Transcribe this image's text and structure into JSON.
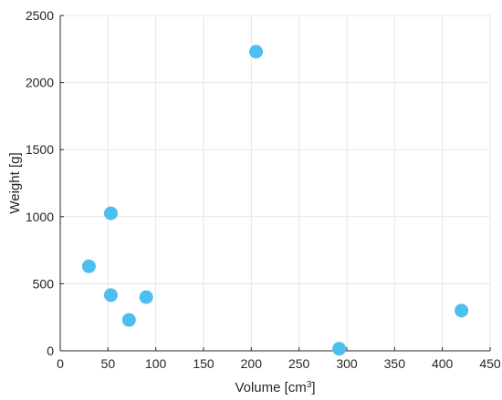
{
  "chart_data": {
    "type": "scatter",
    "title": "",
    "xlabel_base": "Volume [cm",
    "xlabel_sup": "3",
    "xlabel_end": "]",
    "ylabel": "Weight [g]",
    "xlim": [
      0,
      450
    ],
    "ylim": [
      0,
      2500
    ],
    "xticks": [
      0,
      50,
      100,
      150,
      200,
      250,
      300,
      350,
      400,
      450
    ],
    "yticks": [
      0,
      500,
      1000,
      1500,
      2000,
      2500
    ],
    "grid": true,
    "legend": "none",
    "marker_color": "#4DBEEE",
    "series": [
      {
        "x": [
          205,
          53,
          30,
          53,
          90,
          72,
          292,
          420
        ],
        "y": [
          2230,
          1025,
          630,
          415,
          400,
          230,
          15,
          300
        ]
      }
    ]
  }
}
